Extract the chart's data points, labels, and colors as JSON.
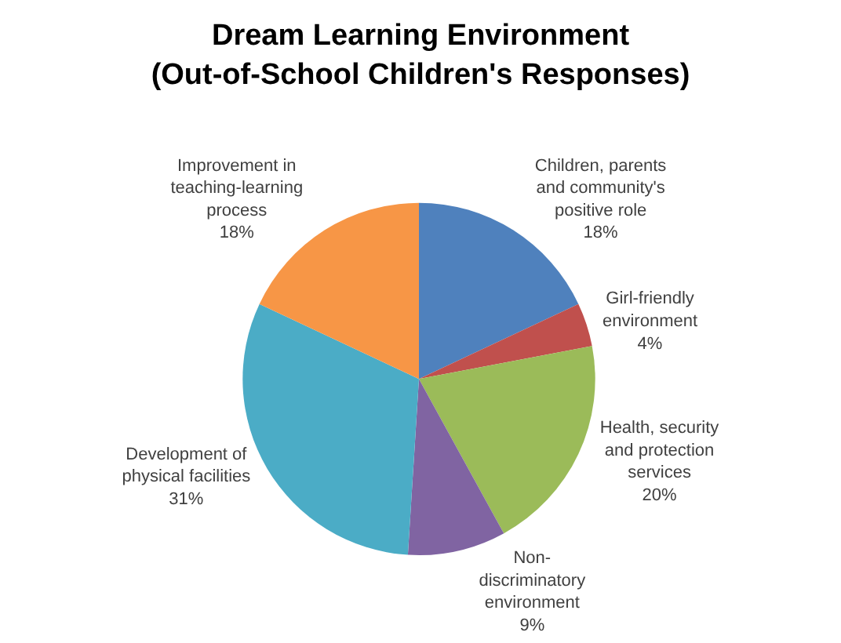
{
  "chart_data": {
    "type": "pie",
    "title": "Dream Learning Environment\n(Out-of-School Children's Responses)",
    "categories": [
      "Children, parents\nand community's\npositive role",
      "Girl-friendly\nenvironment",
      "Health, security\nand protection\nservices",
      "Non-\ndiscriminatory\nenvironment",
      "Development of\nphysical facilities",
      "Improvement in\nteaching-learning\nprocess"
    ],
    "values": [
      18,
      4,
      20,
      9,
      31,
      18
    ],
    "value_labels": [
      "18%",
      "4%",
      "20%",
      "9%",
      "31%",
      "18%"
    ],
    "colors": [
      "#4f81bd",
      "#c0504d",
      "#9bbb59",
      "#8064a2",
      "#4bacc6",
      "#f79646"
    ],
    "legend": false
  }
}
